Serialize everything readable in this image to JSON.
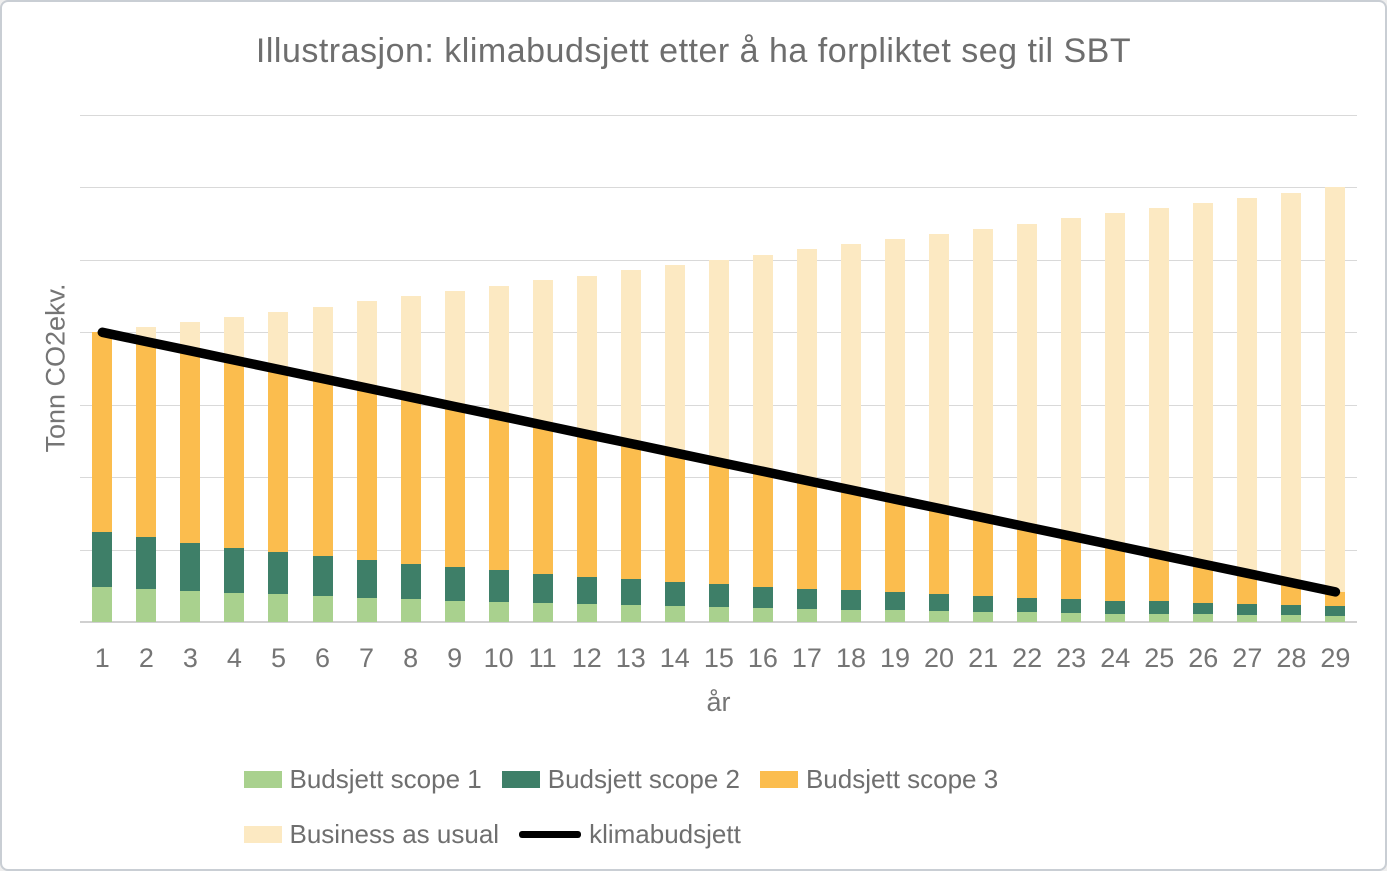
{
  "title": "Illustrasjon: klimabudsjett etter å ha forpliktet seg til SBT",
  "colors": {
    "scope1": "#a9d18e",
    "scope2": "#3e7f68",
    "scope3": "#fbbd4e",
    "business_as_usual": "#fce9c2",
    "klimabudsjett_line": "#000000",
    "gridline": "#d9d9d9",
    "axis_line": "#d0d0d0",
    "text": "#6e6e6e"
  },
  "chart_data": {
    "type": "stacked-bar+line",
    "title": "Illustrasjon: klimabudsjett etter å ha forpliktet seg til SBT",
    "xlabel": "år",
    "ylabel": "Tonn CO2ekv.",
    "categories": [
      1,
      2,
      3,
      4,
      5,
      6,
      7,
      8,
      9,
      10,
      11,
      12,
      13,
      14,
      15,
      16,
      17,
      18,
      19,
      20,
      21,
      22,
      23,
      24,
      25,
      26,
      27,
      28,
      29
    ],
    "ylim": [
      0,
      175
    ],
    "gridline_step": 25,
    "y_tick_labels_shown": false,
    "grid": "horizontal",
    "legend_position": "bottom",
    "series": [
      {
        "name": "Budsjett scope 1",
        "type": "bar-stacked",
        "color": "#a9d18e",
        "values": [
          12.2,
          11.5,
          10.8,
          10.1,
          9.5,
          8.9,
          8.4,
          7.9,
          7.4,
          7.0,
          6.6,
          6.2,
          5.8,
          5.5,
          5.1,
          4.8,
          4.5,
          4.3,
          4.0,
          3.8,
          3.5,
          3.3,
          3.1,
          2.9,
          2.8,
          2.6,
          2.4,
          2.3,
          2.2
        ]
      },
      {
        "name": "Budsjett scope 2",
        "type": "bar-stacked",
        "color": "#3e7f68",
        "values": [
          18.8,
          17.7,
          16.6,
          15.6,
          14.7,
          13.8,
          13.0,
          12.2,
          11.5,
          10.8,
          10.1,
          9.5,
          8.9,
          8.4,
          7.9,
          7.4,
          7.0,
          6.6,
          6.2,
          5.8,
          5.5,
          5.1,
          4.8,
          4.5,
          4.3,
          4.0,
          3.8,
          3.5,
          3.3
        ]
      },
      {
        "name": "Budsjett scope 3",
        "type": "bar-stacked",
        "color": "#fbbd4e",
        "values": [
          69.0,
          67.6,
          66.2,
          64.6,
          63.0,
          61.3,
          59.4,
          57.5,
          55.5,
          53.4,
          51.3,
          49.1,
          46.9,
          44.5,
          42.2,
          39.8,
          37.3,
          34.7,
          32.2,
          29.6,
          27.0,
          24.4,
          21.7,
          19.0,
          16.1,
          13.4,
          10.6,
          7.8,
          4.9
        ]
      },
      {
        "name": "Business as usual",
        "type": "bar-background",
        "color": "#fce9c2",
        "values": [
          100.0,
          101.8,
          103.6,
          105.4,
          107.1,
          108.9,
          110.7,
          112.5,
          114.3,
          116.1,
          117.9,
          119.6,
          121.4,
          123.2,
          125.0,
          126.8,
          128.6,
          130.4,
          132.1,
          133.9,
          135.7,
          137.5,
          139.3,
          141.1,
          142.9,
          144.6,
          146.4,
          148.2,
          150.0
        ]
      },
      {
        "name": "klimabudsjett",
        "type": "line",
        "color": "#000000",
        "stroke_width": 9.5,
        "values": [
          100.0,
          96.8,
          93.6,
          90.4,
          87.2,
          84.0,
          80.8,
          77.6,
          74.4,
          71.2,
          68.0,
          64.8,
          61.6,
          58.4,
          55.2,
          52.0,
          48.8,
          45.6,
          42.4,
          39.2,
          36.0,
          32.8,
          29.6,
          26.4,
          23.2,
          20.0,
          16.8,
          13.6,
          10.4
        ]
      }
    ]
  }
}
